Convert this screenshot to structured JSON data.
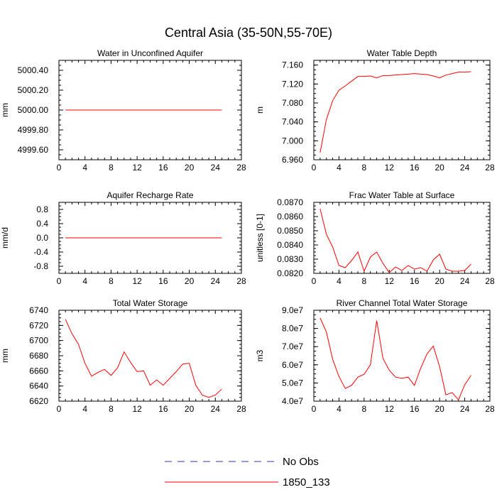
{
  "title": "Central Asia (35-50N,55-70E)",
  "legend": [
    {
      "label": "No Obs",
      "color": "#3333cc",
      "dash": true
    },
    {
      "label": "1850_133",
      "color": "#ff0000",
      "dash": false
    }
  ],
  "chart_data": [
    {
      "type": "line",
      "title": "Water in Unconfined Aquifer",
      "ylabel": "mm",
      "xlim": [
        0,
        28
      ],
      "ylim": [
        4999.5,
        5000.5
      ],
      "xticks": [
        "0",
        "4",
        "8",
        "12",
        "16",
        "20",
        "24",
        "28"
      ],
      "yticks": [
        {
          "v": 4999.6,
          "label": "4999.60"
        },
        {
          "v": 4999.8,
          "label": "4999.80"
        },
        {
          "v": 5000.0,
          "label": "5000.00"
        },
        {
          "v": 5000.2,
          "label": "5000.20"
        },
        {
          "v": 5000.4,
          "label": "5000.40"
        }
      ],
      "series": [
        {
          "name": "1850_133",
          "color": "#ff0000",
          "x": [
            1,
            2,
            3,
            4,
            5,
            6,
            7,
            8,
            9,
            10,
            11,
            12,
            13,
            14,
            15,
            16,
            17,
            18,
            19,
            20,
            21,
            22,
            23,
            24,
            25
          ],
          "values": [
            5000,
            5000,
            5000,
            5000,
            5000,
            5000,
            5000,
            5000,
            5000,
            5000,
            5000,
            5000,
            5000,
            5000,
            5000,
            5000,
            5000,
            5000,
            5000,
            5000,
            5000,
            5000,
            5000,
            5000,
            5000
          ]
        }
      ]
    },
    {
      "type": "line",
      "title": "Water Table Depth",
      "ylabel": "m",
      "xlim": [
        0,
        28
      ],
      "ylim": [
        6.96,
        7.17
      ],
      "xticks": [
        "0",
        "4",
        "8",
        "12",
        "16",
        "20",
        "24",
        "28"
      ],
      "yticks": [
        {
          "v": 6.96,
          "label": "6.960"
        },
        {
          "v": 7.0,
          "label": "7.000"
        },
        {
          "v": 7.04,
          "label": "7.040"
        },
        {
          "v": 7.08,
          "label": "7.080"
        },
        {
          "v": 7.12,
          "label": "7.120"
        },
        {
          "v": 7.16,
          "label": "7.160"
        }
      ],
      "series": [
        {
          "name": "1850_133",
          "color": "#ff0000",
          "x": [
            1,
            2,
            3,
            4,
            5,
            6,
            7,
            8,
            9,
            10,
            11,
            12,
            13,
            14,
            15,
            16,
            17,
            18,
            19,
            20,
            21,
            22,
            23,
            24,
            25
          ],
          "values": [
            6.975,
            7.045,
            7.085,
            7.107,
            7.116,
            7.126,
            7.136,
            7.136,
            7.137,
            7.133,
            7.138,
            7.138,
            7.139,
            7.14,
            7.141,
            7.142,
            7.141,
            7.14,
            7.137,
            7.133,
            7.139,
            7.142,
            7.145,
            7.145,
            7.146
          ]
        }
      ]
    },
    {
      "type": "line",
      "title": "Aquifer Recharge Rate",
      "ylabel": "mm/d",
      "xlim": [
        0,
        28
      ],
      "ylim": [
        -1.0,
        1.0
      ],
      "xticks": [
        "0",
        "4",
        "8",
        "12",
        "16",
        "20",
        "24",
        "28"
      ],
      "yticks": [
        {
          "v": -0.8,
          "label": "-0.8"
        },
        {
          "v": -0.4,
          "label": "-0.4"
        },
        {
          "v": 0.0,
          "label": "0.0"
        },
        {
          "v": 0.4,
          "label": "0.4"
        },
        {
          "v": 0.8,
          "label": "0.8"
        }
      ],
      "series": [
        {
          "name": "1850_133",
          "color": "#ff0000",
          "x": [
            1,
            2,
            3,
            4,
            5,
            6,
            7,
            8,
            9,
            10,
            11,
            12,
            13,
            14,
            15,
            16,
            17,
            18,
            19,
            20,
            21,
            22,
            23,
            24,
            25
          ],
          "values": [
            0,
            0,
            0,
            0,
            0,
            0,
            0,
            0,
            0,
            0,
            0,
            0,
            0,
            0,
            0,
            0,
            0,
            0,
            0,
            0,
            0,
            0,
            0,
            0,
            0
          ]
        }
      ]
    },
    {
      "type": "line",
      "title": "Frac Water Table at Surface",
      "ylabel": "unitless [0-1]",
      "xlim": [
        0,
        28
      ],
      "ylim": [
        0.082,
        0.087
      ],
      "xticks": [
        "0",
        "4",
        "8",
        "12",
        "16",
        "20",
        "24",
        "28"
      ],
      "yticks": [
        {
          "v": 0.082,
          "label": "0.0820"
        },
        {
          "v": 0.083,
          "label": "0.0830"
        },
        {
          "v": 0.084,
          "label": "0.0840"
        },
        {
          "v": 0.085,
          "label": "0.0850"
        },
        {
          "v": 0.086,
          "label": "0.0860"
        },
        {
          "v": 0.087,
          "label": "0.0870"
        }
      ],
      "series": [
        {
          "name": "1850_133",
          "color": "#ff0000",
          "x": [
            1,
            2,
            3,
            4,
            5,
            6,
            7,
            8,
            9,
            10,
            11,
            12,
            13,
            14,
            15,
            16,
            17,
            18,
            19,
            20,
            21,
            22,
            23,
            24,
            25
          ],
          "values": [
            0.08655,
            0.08475,
            0.08385,
            0.08255,
            0.0824,
            0.0829,
            0.0835,
            0.08215,
            0.08315,
            0.0835,
            0.0827,
            0.08205,
            0.08245,
            0.0822,
            0.08255,
            0.0823,
            0.0824,
            0.08215,
            0.08295,
            0.08335,
            0.0823,
            0.08215,
            0.08215,
            0.0822,
            0.08265
          ]
        }
      ]
    },
    {
      "type": "line",
      "title": "Total Water Storage",
      "ylabel": "mm",
      "xlim": [
        0,
        28
      ],
      "ylim": [
        6620,
        6740
      ],
      "xticks": [
        "0",
        "4",
        "8",
        "12",
        "16",
        "20",
        "24",
        "28"
      ],
      "yticks": [
        {
          "v": 6620,
          "label": "6620"
        },
        {
          "v": 6640,
          "label": "6640"
        },
        {
          "v": 6660,
          "label": "6660"
        },
        {
          "v": 6680,
          "label": "6680"
        },
        {
          "v": 6700,
          "label": "6700"
        },
        {
          "v": 6720,
          "label": "6720"
        },
        {
          "v": 6740,
          "label": "6740"
        }
      ],
      "series": [
        {
          "name": "1850_133",
          "color": "#ff0000",
          "x": [
            1,
            2,
            3,
            4,
            5,
            6,
            7,
            8,
            9,
            10,
            11,
            12,
            13,
            14,
            15,
            16,
            17,
            18,
            19,
            20,
            21,
            22,
            23,
            24,
            25
          ],
          "values": [
            6728,
            6709,
            6695,
            6670,
            6653,
            6658,
            6662,
            6654,
            6664,
            6685,
            6671,
            6659,
            6660,
            6641,
            6648,
            6641,
            6650,
            6659,
            6669,
            6670,
            6641,
            6628,
            6625,
            6628,
            6636
          ]
        }
      ]
    },
    {
      "type": "line",
      "title": "River Channel Total Water Storage",
      "ylabel": "m3",
      "xlim": [
        0,
        28
      ],
      "ylim": [
        40000000,
        90000000
      ],
      "xticks": [
        "0",
        "4",
        "8",
        "12",
        "16",
        "20",
        "24",
        "28"
      ],
      "yticks": [
        {
          "v": 40000000,
          "label": "4.0e7"
        },
        {
          "v": 50000000,
          "label": "5.0e7"
        },
        {
          "v": 60000000,
          "label": "6.0e7"
        },
        {
          "v": 70000000,
          "label": "7.0e7"
        },
        {
          "v": 80000000,
          "label": "8.0e7"
        },
        {
          "v": 90000000,
          "label": "9.0e7"
        }
      ],
      "series": [
        {
          "name": "1850_133",
          "color": "#ff0000",
          "x": [
            1,
            2,
            3,
            4,
            5,
            6,
            7,
            8,
            9,
            10,
            11,
            12,
            13,
            14,
            15,
            16,
            17,
            18,
            19,
            20,
            21,
            22,
            23,
            24,
            25
          ],
          "values": [
            85800000,
            78000000,
            63000000,
            53500000,
            47000000,
            48700000,
            53200000,
            54800000,
            60000000,
            84300000,
            63500000,
            57000000,
            53200000,
            52600000,
            53200000,
            48700000,
            58200000,
            66000000,
            70300000,
            59000000,
            43500000,
            44700000,
            40700000,
            49000000,
            54200000
          ]
        }
      ]
    }
  ]
}
